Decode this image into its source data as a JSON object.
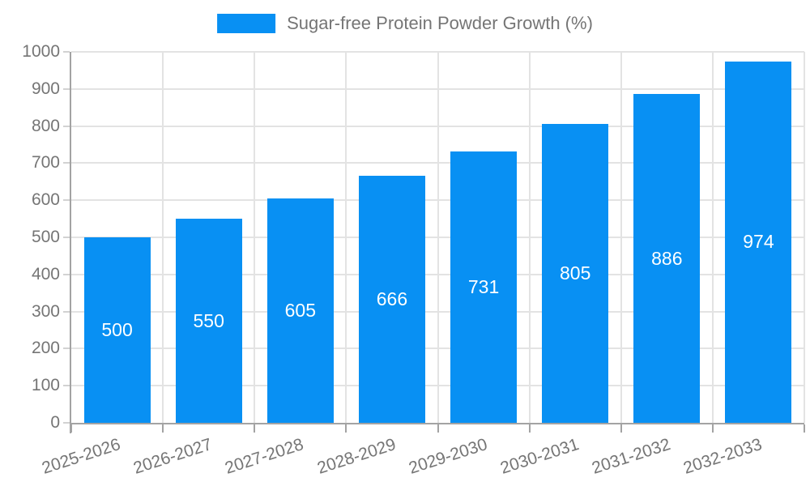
{
  "legend": {
    "label": "Sugar-free Protein Powder Growth (%)"
  },
  "colors": {
    "bar": "#0890f3",
    "value_label": "#ffffff",
    "axis_text": "#757575",
    "grid_line": "#e3e3e3",
    "axis_line": "#a3a3a3",
    "background": "#ffffff"
  },
  "chart_data": {
    "type": "bar",
    "title": "Sugar-free Protein Powder Growth (%)",
    "series_name": "Sugar-free Protein Powder Growth (%)",
    "categories": [
      "2025-2026",
      "2026-2027",
      "2027-2028",
      "2028-2029",
      "2029-2030",
      "2030-2031",
      "2031-2032",
      "2032-2033"
    ],
    "values": [
      500,
      550,
      605,
      666,
      731,
      805,
      886,
      974
    ],
    "xlabel": "",
    "ylabel": "",
    "ylim": [
      0,
      1000
    ],
    "y_ticks": [
      0,
      100,
      200,
      300,
      400,
      500,
      600,
      700,
      800,
      900,
      1000
    ],
    "legend_position": "top-center",
    "grid": "both",
    "bar_labels_inside": "centered",
    "x_label_rotation_deg": -18,
    "bar_color": "#0890f3"
  }
}
